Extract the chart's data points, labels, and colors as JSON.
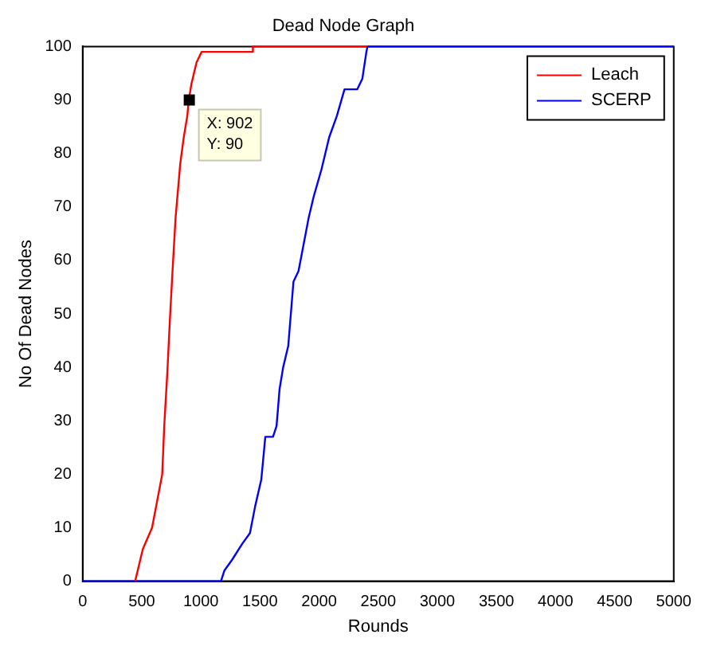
{
  "chart_data": {
    "type": "line",
    "title": "Dead Node Graph",
    "xlabel": "Rounds",
    "ylabel": "No Of Dead Nodes",
    "xlim": [
      0,
      5000
    ],
    "xticks": [
      0,
      500,
      1000,
      1500,
      2000,
      2500,
      3000,
      3500,
      4000,
      4500,
      5000
    ],
    "ylim": [
      0,
      100
    ],
    "yticks": [
      0,
      10,
      20,
      30,
      40,
      50,
      60,
      70,
      80,
      90,
      100
    ],
    "grid": false,
    "legend": "top right",
    "marker": "none",
    "line_style": "solid",
    "annotations": [
      {
        "text": "X: 902\nY: 90",
        "x": 902,
        "y": 90
      }
    ],
    "series": [
      {
        "name": "Leach",
        "color": "#ff0000",
        "x": [
          444,
          509,
          587,
          630,
          673,
          690,
          716,
          738,
          760,
          786,
          825,
          855,
          885,
          898,
          920,
          963,
          1006,
          1062,
          1437,
          1440,
          2409
        ],
        "values": [
          0,
          6,
          10,
          15,
          20,
          29,
          39,
          49,
          58,
          68,
          78,
          83,
          87,
          90,
          93,
          97,
          99,
          99,
          99,
          100,
          100
        ]
      },
      {
        "name": "SCERP",
        "color": "#0000ff",
        "x": [
          0,
          1170,
          1199,
          1264,
          1350,
          1415,
          1459,
          1511,
          1545,
          1610,
          1640,
          1666,
          1696,
          1739,
          1761,
          1783,
          1826,
          1869,
          1912,
          1955,
          2020,
          2085,
          2150,
          2215,
          2323,
          2366,
          2400,
          2409,
          5000
        ],
        "values": [
          0,
          0,
          2,
          4,
          7,
          9,
          14,
          19,
          27,
          27,
          29,
          36,
          40,
          44,
          50,
          56,
          58,
          63,
          68,
          72,
          77,
          83,
          87,
          92,
          92,
          94,
          99,
          100,
          100
        ]
      }
    ]
  }
}
